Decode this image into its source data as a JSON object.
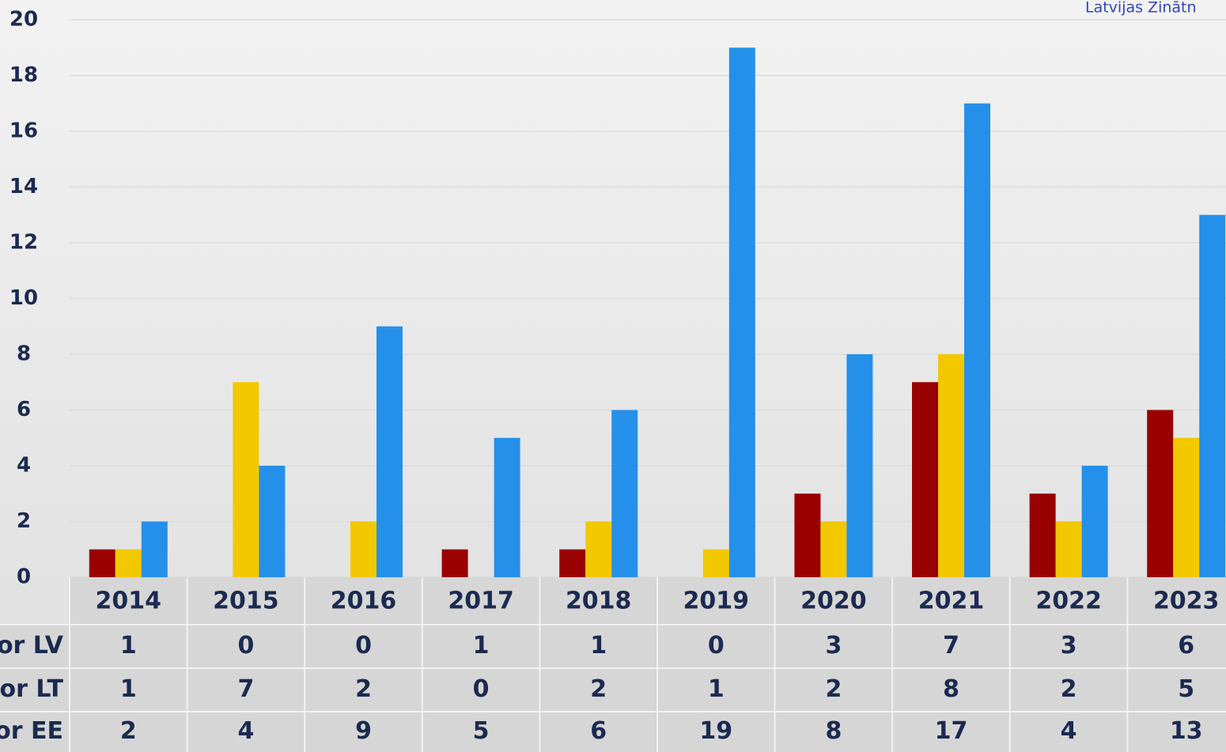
{
  "chart_data": {
    "type": "bar",
    "note_top_right": "Latvijas Zinātn",
    "categories": [
      "2014",
      "2015",
      "2016",
      "2017",
      "2018",
      "2019",
      "2020",
      "2021",
      "2022",
      "2023"
    ],
    "series": [
      {
        "name": "or LV",
        "color": "#990000",
        "values": [
          1,
          0,
          0,
          1,
          1,
          0,
          3,
          7,
          3,
          6
        ]
      },
      {
        "name": "or LT",
        "color": "#f2c800",
        "values": [
          1,
          7,
          2,
          0,
          2,
          1,
          2,
          8,
          2,
          5
        ]
      },
      {
        "name": "or EE",
        "color": "#2590ea",
        "values": [
          2,
          4,
          9,
          5,
          6,
          19,
          8,
          17,
          4,
          13
        ]
      }
    ],
    "ylim": [
      0,
      20
    ],
    "yticks": [
      0,
      2,
      4,
      6,
      8,
      10,
      12,
      14,
      16,
      18,
      20
    ],
    "grid": true
  }
}
